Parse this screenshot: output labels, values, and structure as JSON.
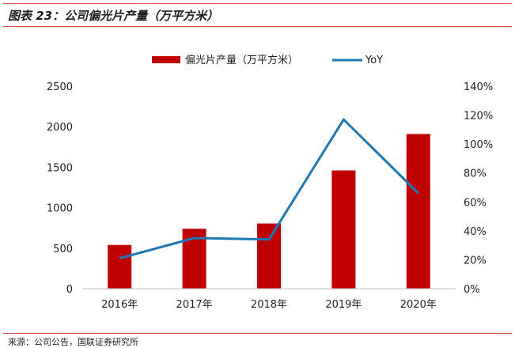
{
  "figure": {
    "title": "图表 23：公司偏光片产量（万平方米）",
    "source": "来源：公司公告，国联证券研究所"
  },
  "colors": {
    "bar": "#c00000",
    "line": "#1f77b4",
    "rule": "#d9534f"
  },
  "chart_data": {
    "type": "bar",
    "categories": [
      "2016年",
      "2017年",
      "2018年",
      "2019年",
      "2020年"
    ],
    "series": [
      {
        "name": "偏光片产量（万平方米）",
        "type": "bar",
        "axis": "left",
        "values": [
          540,
          740,
          805,
          1460,
          1910
        ]
      },
      {
        "name": "YoY",
        "type": "line",
        "axis": "right",
        "values": [
          0.21,
          0.35,
          0.34,
          1.17,
          0.66
        ]
      }
    ],
    "y_left": {
      "min": 0,
      "max": 2500,
      "ticks": [
        "0",
        "500",
        "1000",
        "1500",
        "2000",
        "2500"
      ]
    },
    "y_right": {
      "min": 0,
      "max": 1.4,
      "ticks": [
        "0%",
        "20%",
        "40%",
        "60%",
        "80%",
        "100%",
        "120%",
        "140%"
      ]
    },
    "legend_position": "top-center",
    "grid": false
  }
}
